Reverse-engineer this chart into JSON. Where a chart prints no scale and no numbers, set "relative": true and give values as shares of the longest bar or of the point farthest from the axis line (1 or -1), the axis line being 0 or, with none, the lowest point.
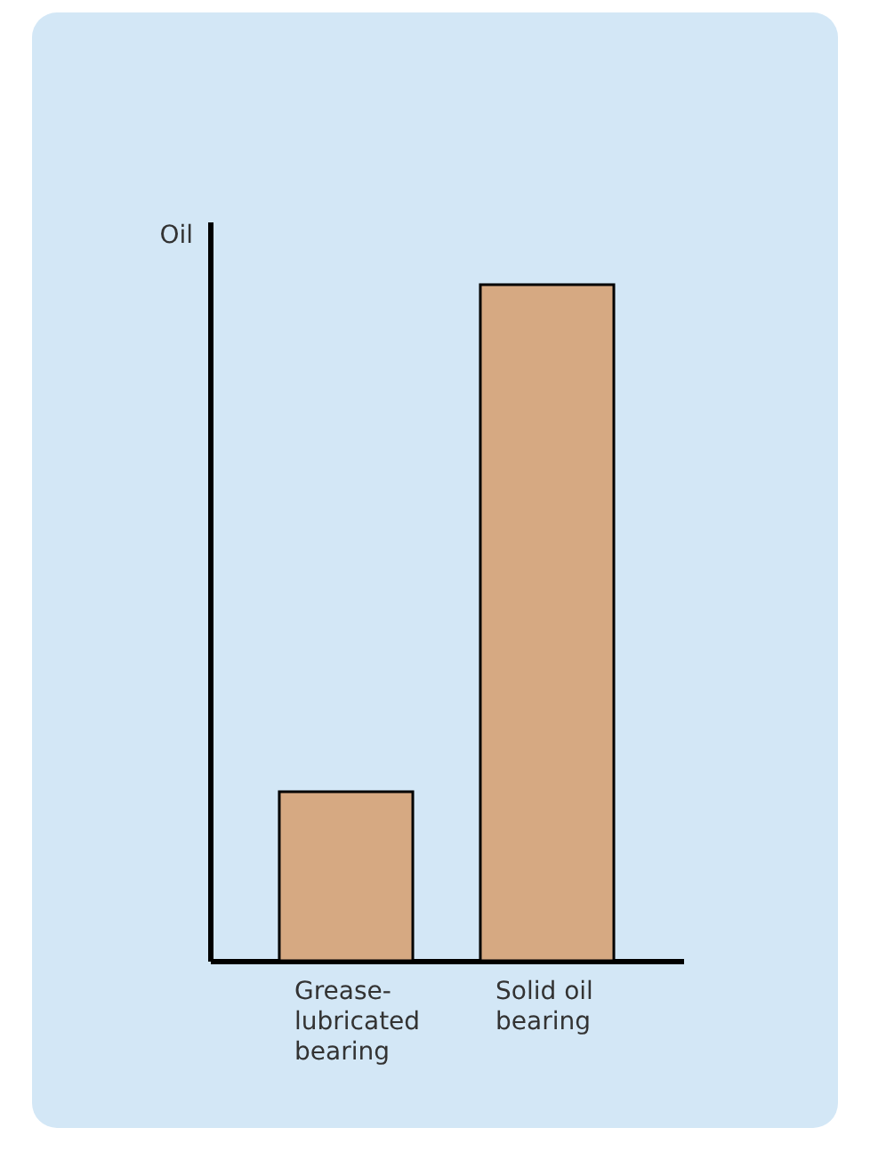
{
  "chart_data": {
    "type": "bar",
    "relative": true,
    "ylabel": "Oil",
    "categories": [
      "Grease-lubricated bearing",
      "Solid oil bearing"
    ],
    "values": [
      0.25,
      1
    ],
    "color": "#d6a982"
  }
}
